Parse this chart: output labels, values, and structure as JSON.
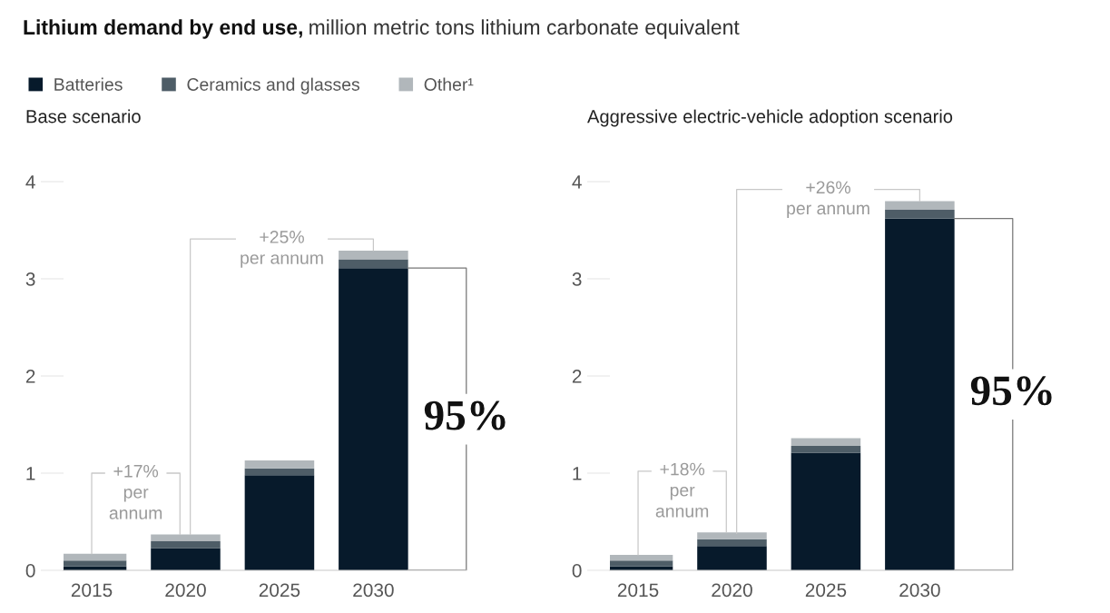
{
  "chart_data": [
    {
      "type": "bar",
      "title": "Lithium demand by end use,",
      "ylabel": "million metric tons lithium carbonate equivalent",
      "subtitle": "Base scenario",
      "categories": [
        "2015",
        "2020",
        "2025",
        "2030"
      ],
      "stacked": true,
      "series": [
        {
          "name": "Batteries",
          "color": "#071a2b",
          "values": [
            0.04,
            0.23,
            0.98,
            3.11
          ]
        },
        {
          "name": "Ceramics and glasses",
          "color": "#4e5d67",
          "values": [
            0.06,
            0.07,
            0.07,
            0.09
          ]
        },
        {
          "name": "Other¹",
          "color": "#b1b7bb",
          "values": [
            0.07,
            0.07,
            0.08,
            0.09
          ]
        }
      ],
      "ylim": [
        0,
        4
      ],
      "yticks": [
        0,
        1,
        2,
        3,
        4
      ],
      "grid": false,
      "legend": "top left",
      "annotations": [
        {
          "text": "+17%\nper\nannum",
          "x": "2015",
          "y": 0.17
        },
        {
          "text": "+25%\nper annum",
          "x": "2020",
          "y": 0.37
        },
        "95%"
      ]
    },
    {
      "type": "bar",
      "subtitle": "Aggressive electric-vehicle adoption scenario",
      "categories": [
        "2015",
        "2020",
        "2025",
        "2030"
      ],
      "stacked": true,
      "series": [
        {
          "color": "#071a2b",
          "values": [
            0.04,
            0.25,
            1.21,
            3.62
          ]
        },
        {
          "color": "#4e5d67",
          "values": [
            0.06,
            0.07,
            0.07,
            0.09
          ]
        },
        {
          "color": "#b1b7bb",
          "values": [
            0.06,
            0.07,
            0.08,
            0.09
          ]
        }
      ],
      "ylim": [
        0,
        4
      ],
      "yticks": [
        0,
        1,
        2,
        3,
        4
      ],
      "grid": false,
      "annotations": [
        {
          "text": "+18%\nper\nannum",
          "x": "2015",
          "y": 0.16
        },
        {
          "text": "+26%\nper annum",
          "x": "2020",
          "y": 0.38
        },
        "95%"
      ]
    }
  ]
}
